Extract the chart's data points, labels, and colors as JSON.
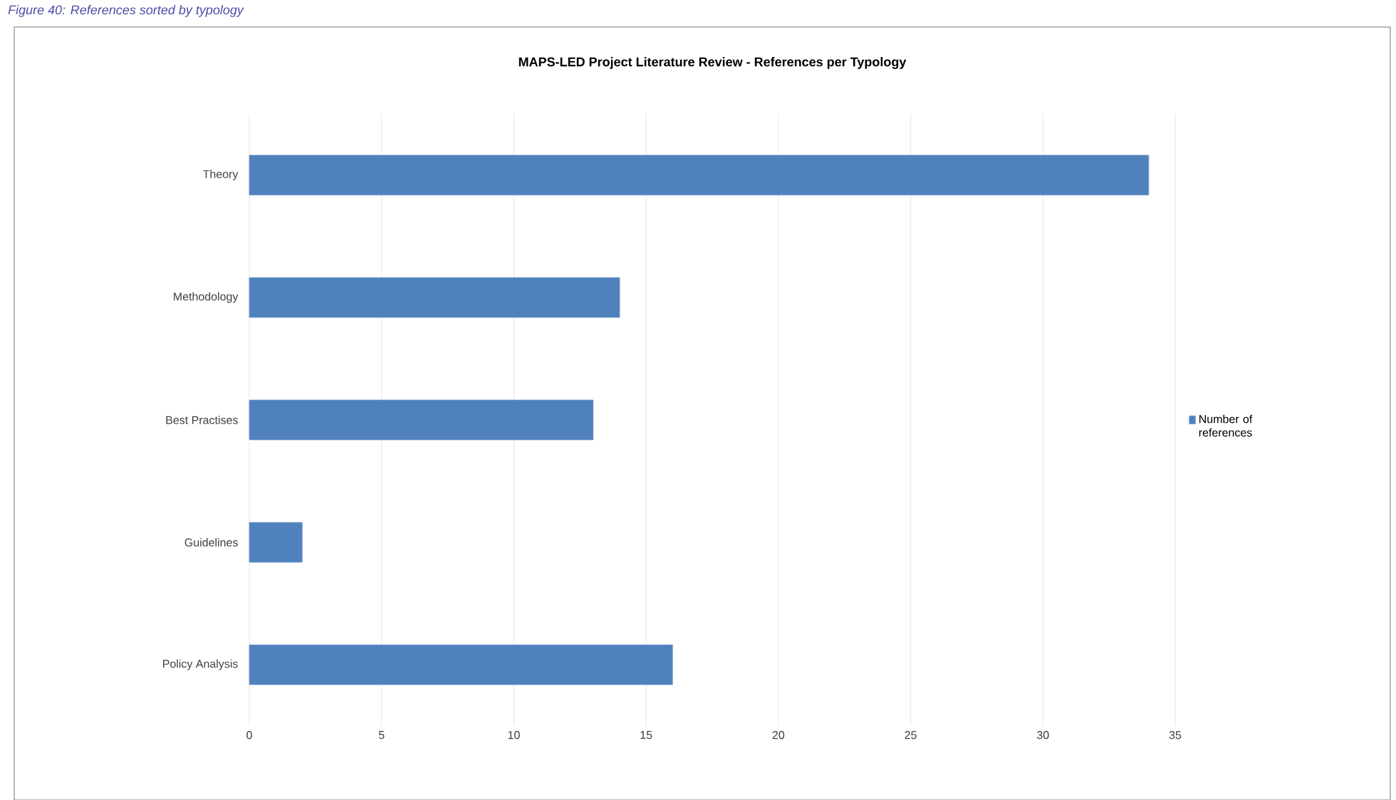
{
  "chart_data": {
    "type": "bar",
    "orientation": "horizontal",
    "title": "MAPS-LED Project Literature Review - References per Typology",
    "annotations": [
      "Figure 40: References sorted by typology"
    ],
    "categories": [
      "Theory",
      "Methodology",
      "Best Practises",
      "Guidelines",
      "Policy Analysis"
    ],
    "series": [
      {
        "name": "Number of references",
        "color": "#4f81bd",
        "values": [
          34,
          14,
          13,
          2,
          16
        ]
      }
    ],
    "xlim": [
      0,
      35
    ],
    "xticks": [
      0,
      5,
      10,
      15,
      20,
      25,
      30,
      35
    ],
    "grid": "x",
    "legend": "right"
  }
}
